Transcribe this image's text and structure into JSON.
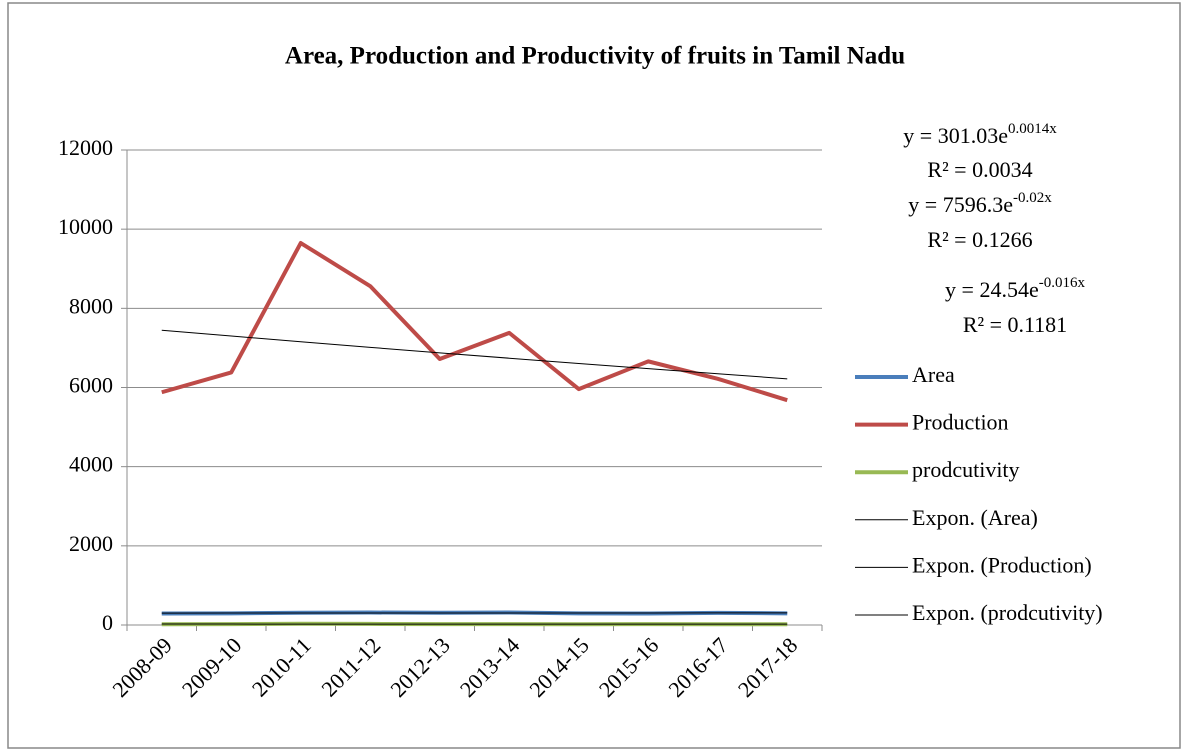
{
  "chart_data": {
    "type": "line",
    "title": "Area, Production and Productivity of  fruits in Tamil Nadu",
    "categories": [
      "2008-09",
      "2009-10",
      "2010-11",
      "2011-12",
      "2012-13",
      "2013-14",
      "2014-15",
      "2015-16",
      "2016-17",
      "2017-18"
    ],
    "series": [
      {
        "name": "Area",
        "color": "#4a7ebb",
        "line_width": 4,
        "values": [
          290,
          295,
          310,
          315,
          310,
          315,
          295,
          290,
          305,
          295
        ]
      },
      {
        "name": "Production",
        "color": "#be4b48",
        "line_width": 4,
        "values": [
          5880,
          6380,
          9650,
          8560,
          6720,
          7380,
          5960,
          6660,
          6220,
          5680
        ]
      },
      {
        "name": "prodcutivity",
        "color": "#98b954",
        "line_width": 4,
        "values": [
          20,
          21,
          31,
          27,
          22,
          23,
          20,
          23,
          20,
          19
        ]
      },
      {
        "name": "Expon. (Area)",
        "color": "#000000",
        "line_width": 1,
        "values": [
          301,
          302,
          302,
          303,
          303,
          304,
          304,
          304,
          305,
          305
        ]
      },
      {
        "name": "Expon. (Production)",
        "color": "#000000",
        "line_width": 1,
        "values": [
          7446,
          7300,
          7156,
          7014,
          6876,
          6740,
          6606,
          6476,
          6348,
          6219
        ]
      },
      {
        "name": "Expon. (prodcutivity)",
        "color": "#000000",
        "line_width": 1,
        "values": [
          24.2,
          23.8,
          23.4,
          23.0,
          22.6,
          22.2,
          21.9,
          21.6,
          21.2,
          20.9
        ]
      }
    ],
    "annotations": [
      {
        "text": "y = 301.03e",
        "superscript": "0.0014x"
      },
      {
        "text": "R² = 0.0034"
      },
      {
        "text": "y = 7596.3e",
        "superscript": "-0.02x"
      },
      {
        "text": "R² = 0.1266"
      },
      {
        "text": "y = 24.54e",
        "superscript": "-0.016x"
      },
      {
        "text": "R² = 0.1181"
      }
    ],
    "ylim": [
      0,
      12000
    ],
    "yticks": [
      0,
      2000,
      4000,
      6000,
      8000,
      10000,
      12000
    ],
    "grid": true,
    "legend": "right"
  }
}
